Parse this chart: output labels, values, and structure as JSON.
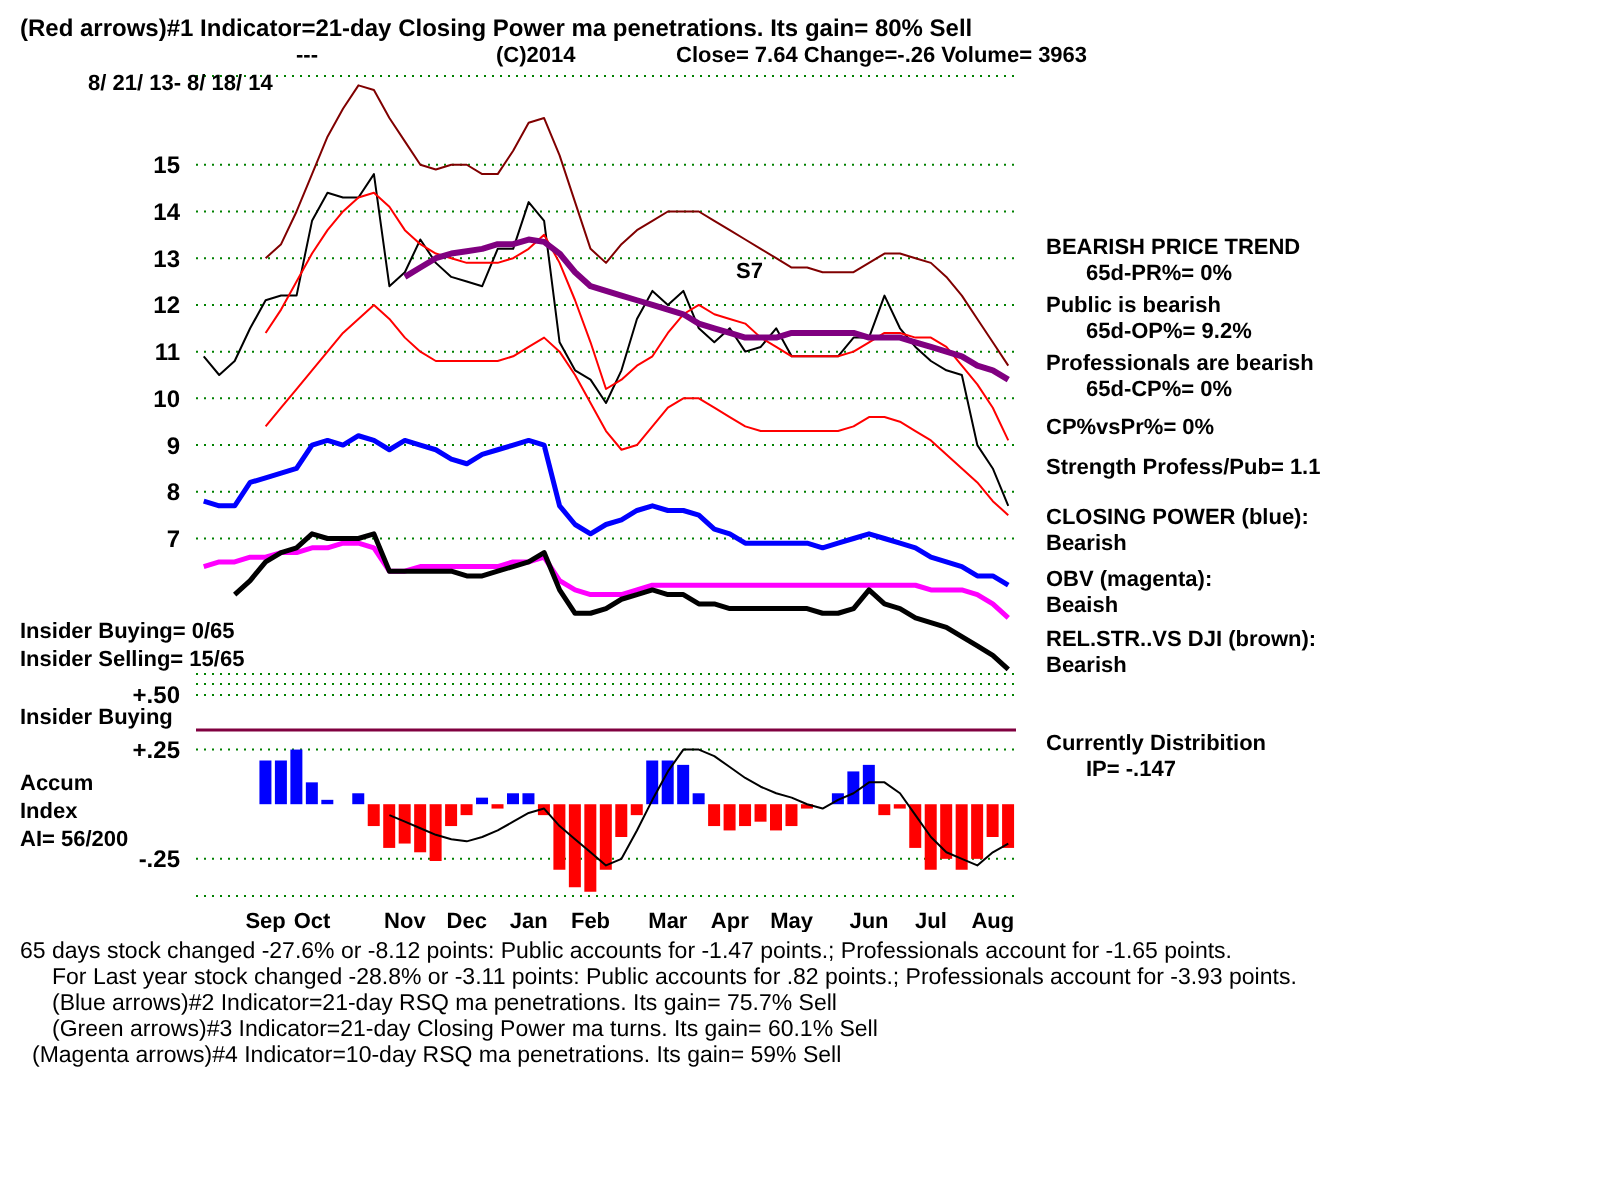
{
  "chart_data": [
    {
      "type": "line",
      "title": "(Red arrows)#1 Indicator=21-day Closing Power ma penetrations. Its gain= 80% Sell",
      "subtitle": "8/ 21/ 13- 8/ 18/ 14",
      "categories": [
        null,
        null,
        null,
        null,
        null,
        null,
        null,
        null,
        null,
        null,
        null,
        null,
        null,
        null,
        null,
        null,
        null,
        null,
        null,
        null,
        null,
        null,
        null,
        null,
        null,
        null,
        null,
        null,
        null,
        null,
        null,
        null,
        null,
        null,
        null,
        null,
        null,
        null,
        null,
        null,
        null,
        null,
        null,
        null,
        null,
        null,
        null,
        null,
        null,
        null,
        null,
        null,
        null
      ],
      "series": [
        {
          "color": "#000000",
          "values": [
            10.9,
            10.5,
            10.8,
            11.5,
            12.1,
            12.2,
            12.2,
            13.8,
            14.4,
            14.3,
            14.3,
            14.8,
            12.4,
            12.7,
            13.4,
            12.9,
            12.6,
            12.5,
            12.4,
            13.2,
            13.2,
            14.2,
            13.8,
            11.2,
            10.6,
            10.4,
            9.9,
            10.6,
            11.7,
            12.3,
            12.0,
            12.3,
            11.5,
            11.2,
            11.5,
            11.0,
            11.1,
            11.5,
            10.9,
            10.9,
            10.9,
            10.9,
            11.3,
            11.3,
            12.2,
            11.5,
            11.1,
            10.8,
            10.6,
            10.5,
            9.0,
            8.5,
            7.7
          ]
        },
        {
          "color": "#800000",
          "values": [
            null,
            null,
            null,
            null,
            13.0,
            13.3,
            14.0,
            14.8,
            15.6,
            16.2,
            16.7,
            16.6,
            16.0,
            15.5,
            15.0,
            14.9,
            15.0,
            15.0,
            14.8,
            14.8,
            15.3,
            15.9,
            16.0,
            15.2,
            14.2,
            13.2,
            12.9,
            13.3,
            13.6,
            13.8,
            14.0,
            14.0,
            14.0,
            13.8,
            13.6,
            13.4,
            13.2,
            13.0,
            12.8,
            12.8,
            12.7,
            12.7,
            12.7,
            12.9,
            13.1,
            13.1,
            13.0,
            12.9,
            12.6,
            12.2,
            11.7,
            11.2,
            10.7
          ]
        },
        {
          "color": "#ff0000",
          "values": [
            null,
            null,
            null,
            null,
            11.4,
            11.9,
            12.5,
            13.1,
            13.6,
            14.0,
            14.3,
            14.4,
            14.1,
            13.6,
            13.3,
            13.1,
            13.0,
            12.9,
            12.9,
            12.9,
            13.0,
            13.2,
            13.5,
            12.9,
            12.1,
            11.2,
            10.2,
            10.4,
            10.7,
            10.9,
            11.4,
            11.8,
            12.0,
            11.8,
            11.7,
            11.6,
            11.3,
            11.1,
            10.9,
            10.9,
            10.9,
            10.9,
            11.0,
            11.2,
            11.4,
            11.4,
            11.3,
            11.3,
            11.1,
            10.7,
            10.3,
            9.8,
            9.1
          ]
        },
        {
          "color": "#ff0000",
          "values": [
            null,
            null,
            null,
            null,
            9.4,
            9.8,
            10.2,
            10.6,
            11.0,
            11.4,
            11.7,
            12.0,
            11.7,
            11.3,
            11.0,
            10.8,
            10.8,
            10.8,
            10.8,
            10.8,
            10.9,
            11.1,
            11.3,
            11.0,
            10.5,
            9.9,
            9.3,
            8.9,
            9.0,
            9.4,
            9.8,
            10.0,
            10.0,
            9.8,
            9.6,
            9.4,
            9.3,
            9.3,
            9.3,
            9.3,
            9.3,
            9.3,
            9.4,
            9.6,
            9.6,
            9.5,
            9.3,
            9.1,
            8.8,
            8.5,
            8.2,
            7.8,
            7.5
          ]
        },
        {
          "color": "#800080",
          "values": [
            null,
            null,
            null,
            null,
            null,
            null,
            null,
            null,
            null,
            null,
            null,
            null,
            null,
            12.6,
            12.8,
            13.0,
            13.1,
            13.15,
            13.2,
            13.3,
            13.3,
            13.4,
            13.35,
            13.1,
            12.7,
            12.4,
            12.3,
            12.2,
            12.1,
            12.0,
            11.9,
            11.8,
            11.6,
            11.5,
            11.4,
            11.3,
            11.3,
            11.3,
            11.4,
            11.4,
            11.4,
            11.4,
            11.4,
            11.3,
            11.3,
            11.3,
            11.2,
            11.1,
            11.0,
            10.9,
            10.7,
            10.6,
            10.4
          ]
        },
        {
          "color": "#0000ff",
          "values": [
            7.8,
            7.7,
            7.7,
            8.2,
            8.3,
            8.4,
            8.5,
            9.0,
            9.1,
            9.0,
            9.2,
            9.1,
            8.9,
            9.1,
            9.0,
            8.9,
            8.7,
            8.6,
            8.8,
            8.9,
            9.0,
            9.1,
            9.0,
            7.7,
            7.3,
            7.1,
            7.3,
            7.4,
            7.6,
            7.7,
            7.6,
            7.6,
            7.5,
            7.2,
            7.1,
            6.9,
            6.9,
            6.9,
            6.9,
            6.9,
            6.8,
            6.9,
            7.0,
            7.1,
            7.0,
            6.9,
            6.8,
            6.6,
            6.5,
            6.4,
            6.2,
            6.2,
            6.0
          ]
        },
        {
          "color": "#ff00ff",
          "values": [
            6.4,
            6.5,
            6.5,
            6.6,
            6.6,
            6.7,
            6.7,
            6.8,
            6.8,
            6.9,
            6.9,
            6.8,
            6.3,
            6.3,
            6.4,
            6.4,
            6.4,
            6.4,
            6.4,
            6.4,
            6.5,
            6.5,
            6.6,
            6.1,
            5.9,
            5.8,
            5.8,
            5.8,
            5.9,
            6.0,
            6.0,
            6.0,
            6.0,
            6.0,
            6.0,
            6.0,
            6.0,
            6.0,
            6.0,
            6.0,
            6.0,
            6.0,
            6.0,
            6.0,
            6.0,
            6.0,
            6.0,
            5.9,
            5.9,
            5.9,
            5.8,
            5.6,
            5.3
          ]
        },
        {
          "color": "#000000",
          "values": [
            null,
            null,
            5.8,
            6.1,
            6.5,
            6.7,
            6.8,
            7.1,
            7.0,
            7.0,
            7.0,
            7.1,
            6.3,
            6.3,
            6.3,
            6.3,
            6.3,
            6.2,
            6.2,
            6.3,
            6.4,
            6.5,
            6.7,
            5.9,
            5.4,
            5.4,
            5.5,
            5.7,
            5.8,
            5.9,
            5.8,
            5.8,
            5.6,
            5.6,
            5.5,
            5.5,
            5.5,
            5.5,
            5.5,
            5.5,
            5.4,
            5.4,
            5.5,
            5.9,
            5.6,
            5.5,
            5.3,
            5.2,
            5.1,
            4.9,
            4.7,
            4.5,
            4.2
          ]
        }
      ],
      "ylim": [
        4.1,
        16.9
      ],
      "yticks": [
        7,
        8,
        9,
        10,
        11,
        12,
        13,
        14,
        15
      ],
      "grid": "y",
      "tick_labels": "y",
      "annotations": [
        "---",
        "(C)2014",
        "Close=  7.64   Change=-.26  Volume= 3963",
        "S7",
        "BEARISH PRICE TREND",
        "65d-PR%= 0%",
        "Public is bearish",
        "65d-OP%= 9.2%",
        "Professionals are bearish",
        "65d-CP%= 0%",
        "CP%vsPr%=  0%",
        "Strength Profess/Pub= 1.1",
        "CLOSING POWER (blue):",
        "Bearish",
        "OBV (magenta):",
        "Beaish",
        "REL.STR..VS DJI (brown):",
        "Bearish",
        "Insider Buying= 0/65",
        "Insider Selling= 15/65"
      ]
    },
    {
      "type": "bar",
      "categories": [
        null,
        null,
        null,
        null,
        "Sep",
        null,
        null,
        "Oct",
        null,
        null,
        null,
        null,
        null,
        "Nov",
        null,
        null,
        null,
        "Dec",
        null,
        null,
        null,
        "Jan",
        null,
        null,
        null,
        "Feb",
        null,
        null,
        null,
        null,
        "Mar",
        null,
        null,
        null,
        "Apr",
        null,
        null,
        null,
        "May",
        null,
        null,
        null,
        null,
        "Jun",
        null,
        null,
        null,
        "Jul",
        null,
        null,
        null,
        "Aug",
        null
      ],
      "series": [
        {
          "type": "bar",
          "values": [
            null,
            null,
            null,
            null,
            0.2,
            0.2,
            0.25,
            0.1,
            0.02,
            0.0,
            0.05,
            -0.1,
            -0.2,
            -0.18,
            -0.22,
            -0.26,
            -0.1,
            -0.05,
            0.03,
            -0.02,
            0.05,
            0.05,
            -0.05,
            -0.3,
            -0.38,
            -0.4,
            -0.3,
            -0.15,
            -0.05,
            0.2,
            0.2,
            0.18,
            0.05,
            -0.1,
            -0.12,
            -0.1,
            -0.08,
            -0.12,
            -0.1,
            -0.02,
            0.0,
            0.05,
            0.15,
            0.18,
            -0.05,
            -0.02,
            -0.2,
            -0.3,
            -0.25,
            -0.3,
            -0.25,
            -0.15,
            -0.2
          ],
          "colors": [
            null,
            null,
            null,
            null,
            "#0000ff",
            "#0000ff",
            "#0000ff",
            "#0000ff",
            "#0000ff",
            "#0000ff",
            "#0000ff",
            "#ff0000",
            "#ff0000",
            "#ff0000",
            "#ff0000",
            "#ff0000",
            "#ff0000",
            "#ff0000",
            "#0000ff",
            "#ff0000",
            "#0000ff",
            "#0000ff",
            "#ff0000",
            "#ff0000",
            "#ff0000",
            "#ff0000",
            "#ff0000",
            "#ff0000",
            "#ff0000",
            "#0000ff",
            "#0000ff",
            "#0000ff",
            "#0000ff",
            "#ff0000",
            "#ff0000",
            "#ff0000",
            "#ff0000",
            "#ff0000",
            "#ff0000",
            "#ff0000",
            "#0000ff",
            "#0000ff",
            "#0000ff",
            "#0000ff",
            "#ff0000",
            "#ff0000",
            "#ff0000",
            "#ff0000",
            "#ff0000",
            "#ff0000",
            "#ff0000",
            "#ff0000",
            "#ff0000"
          ]
        },
        {
          "type": "line",
          "color": "#000000",
          "values": [
            null,
            null,
            null,
            null,
            null,
            null,
            null,
            null,
            null,
            null,
            null,
            null,
            -0.05,
            -0.08,
            -0.11,
            -0.14,
            -0.16,
            -0.17,
            -0.15,
            -0.12,
            -0.08,
            -0.04,
            -0.02,
            -0.1,
            -0.16,
            -0.22,
            -0.28,
            -0.25,
            -0.12,
            0.02,
            0.15,
            0.25,
            0.25,
            0.22,
            0.17,
            0.12,
            0.08,
            0.05,
            0.03,
            0.0,
            -0.02,
            0.02,
            0.05,
            0.1,
            0.1,
            0.05,
            -0.05,
            -0.15,
            -0.22,
            -0.25,
            -0.28,
            -0.22,
            -0.18
          ]
        }
      ],
      "ylim": [
        -0.42,
        0.55
      ],
      "yticks": [
        {
          "value": 0.5,
          "label": "+.50"
        },
        {
          "value": 0.25,
          "label": "+.25"
        },
        {
          "value": -0.25,
          "label": "-.25"
        }
      ],
      "grid": "y",
      "ref_lines": [
        {
          "axis": "y",
          "value": 0.34,
          "label": "Insider Buying",
          "color": "#800040"
        }
      ],
      "annotations": [
        "Accum",
        "Index",
        "AI= 56/200",
        "Currently Distribition",
        "IP= -.147",
        "65 days stock changed -27.6% or -8.12 points:  Public accounts for -1.47 points.;  Professionals account for -1.65 points.",
        "For Last year stock changed -28.8% or -3.11 points:  Public accounts for  .82 points.;  Professionals account for -3.93 points.",
        "(Blue arrows)#2 Indicator=21-day RSQ ma penetrations. Its gain= 75.7% Sell",
        "(Green arrows)#3 Indicator=21-day Closing Power ma turns. Its gain= 60.1% Sell",
        "(Magenta arrows)#4 Indicator=10-day RSQ ma penetrations. Its gain= 59% Sell"
      ]
    }
  ]
}
